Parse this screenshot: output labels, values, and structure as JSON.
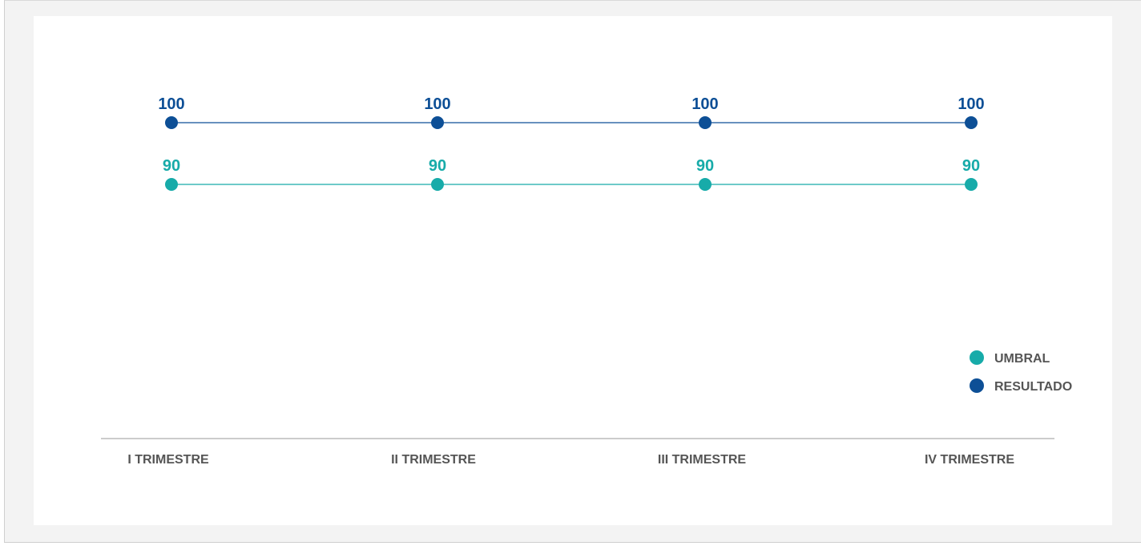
{
  "chart_data": {
    "type": "line",
    "categories": [
      "I TRIMESTRE",
      "II TRIMESTRE",
      "III TRIMESTRE",
      "IV TRIMESTRE"
    ],
    "series": [
      {
        "name": "RESULTADO",
        "values": [
          100,
          100,
          100,
          100
        ],
        "color": "#0d4f96"
      },
      {
        "name": "UMBRAL",
        "values": [
          90,
          90,
          90,
          90
        ],
        "color": "#17aba9"
      }
    ],
    "legend": {
      "position": "right",
      "order": [
        "UMBRAL",
        "RESULTADO"
      ]
    },
    "title": "",
    "xlabel": "",
    "ylabel": "",
    "ylim": [
      72,
      104
    ],
    "grid": false,
    "data_labels": true,
    "colors": {
      "axis": "#9a9a9a",
      "label_text": "#555555"
    }
  }
}
